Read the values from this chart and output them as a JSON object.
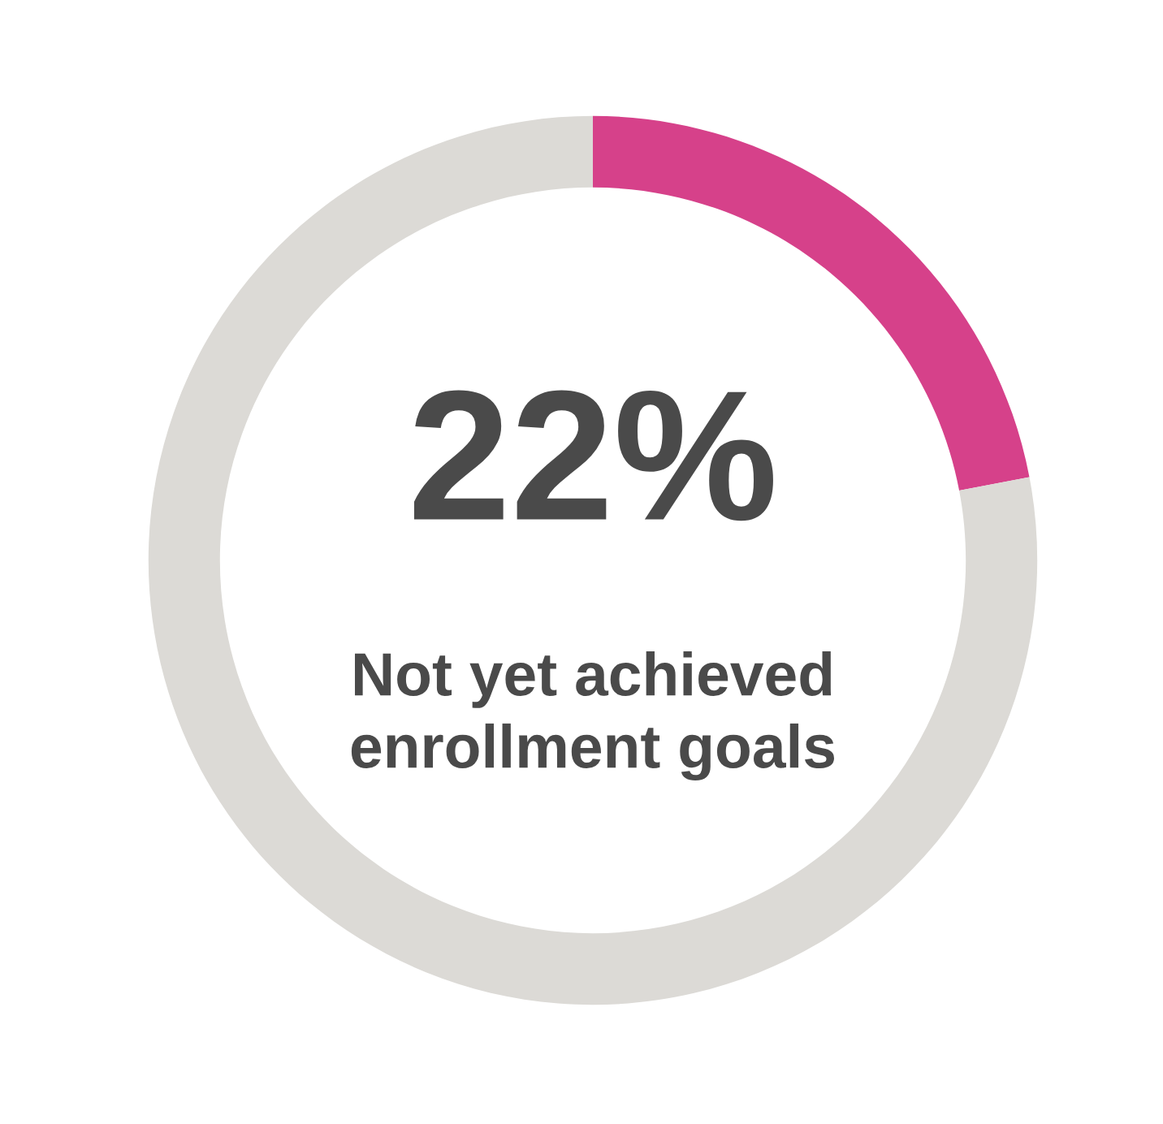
{
  "chart_data": {
    "type": "donut",
    "categories": [
      null,
      null
    ],
    "values": [
      22,
      78
    ],
    "colors": [
      "#d6418a",
      "#dcdad6"
    ],
    "annotations": [
      "22%",
      "Not yet achieved\nenrollment goals"
    ]
  }
}
